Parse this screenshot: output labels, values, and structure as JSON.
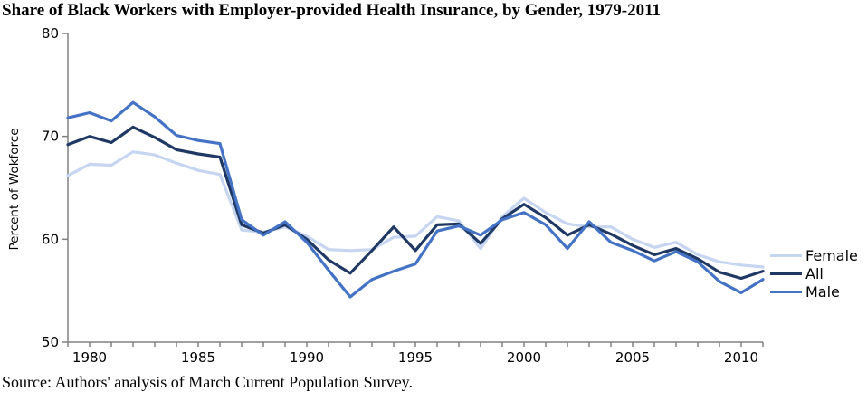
{
  "window": {
    "title": "Share of Black Workers with Employer-provided Health Insurance, by Gender, 1979-2011"
  },
  "source_note": "Source: Authors' analysis of March Current Population Survey.",
  "chart_data": {
    "type": "line",
    "title": "Share of Black Workers with Employer-provided Health Insurance, by Gender, 1979-2011",
    "xlabel": "",
    "ylabel": "Percent of Wokforce",
    "ylim": [
      50,
      80
    ],
    "y_ticks": [
      50,
      60,
      70,
      80
    ],
    "x_range": [
      1979,
      2011
    ],
    "x_tick_years": [
      1979,
      1980,
      1981,
      1982,
      1983,
      1984,
      1985,
      1986,
      1987,
      1988,
      1989,
      1990,
      1991,
      1992,
      1993,
      1994,
      1995,
      1996,
      1997,
      1998,
      1999,
      2000,
      2001,
      2002,
      2003,
      2004,
      2005,
      2006,
      2007,
      2008,
      2009,
      2010,
      2011
    ],
    "x_label_years": [
      1980,
      1985,
      1990,
      1995,
      2000,
      2005,
      2010
    ],
    "grid": false,
    "legend_position": "right",
    "axis_color": "#808080",
    "x": [
      1979,
      1980,
      1981,
      1982,
      1983,
      1984,
      1985,
      1986,
      1987,
      1988,
      1989,
      1990,
      1991,
      1992,
      1993,
      1994,
      1995,
      1996,
      1997,
      1998,
      1999,
      2000,
      2001,
      2002,
      2003,
      2004,
      2005,
      2006,
      2007,
      2008,
      2009,
      2010,
      2011
    ],
    "series": [
      {
        "name": "Female",
        "color": "#c6d5f0",
        "values": [
          66.2,
          67.3,
          67.2,
          68.5,
          68.2,
          67.4,
          66.7,
          66.3,
          60.9,
          60.7,
          61.2,
          60.3,
          59.0,
          58.9,
          59.0,
          60.2,
          60.3,
          62.2,
          61.8,
          59.1,
          62.2,
          64.0,
          62.6,
          61.5,
          61.2,
          61.2,
          60.0,
          59.2,
          59.7,
          58.5,
          57.8,
          57.5,
          57.3
        ]
      },
      {
        "name": "All",
        "color": "#1f3864",
        "values": [
          69.2,
          70.0,
          69.4,
          70.9,
          69.9,
          68.7,
          68.3,
          68.0,
          61.4,
          60.6,
          61.4,
          60.0,
          58.0,
          56.7,
          58.9,
          61.2,
          58.9,
          61.4,
          61.5,
          59.6,
          62.0,
          63.4,
          62.1,
          60.4,
          61.4,
          60.5,
          59.4,
          58.5,
          59.1,
          58.1,
          56.8,
          56.2,
          56.9
        ]
      },
      {
        "name": "Male",
        "color": "#4472c4",
        "values": [
          71.8,
          72.3,
          71.5,
          73.3,
          71.9,
          70.1,
          69.6,
          69.3,
          61.9,
          60.4,
          61.7,
          59.7,
          57.0,
          54.4,
          56.1,
          56.9,
          57.6,
          60.8,
          61.3,
          60.4,
          61.9,
          62.6,
          61.4,
          59.1,
          61.7,
          59.7,
          58.9,
          57.9,
          58.8,
          57.8,
          55.9,
          54.8,
          56.1
        ]
      }
    ]
  }
}
